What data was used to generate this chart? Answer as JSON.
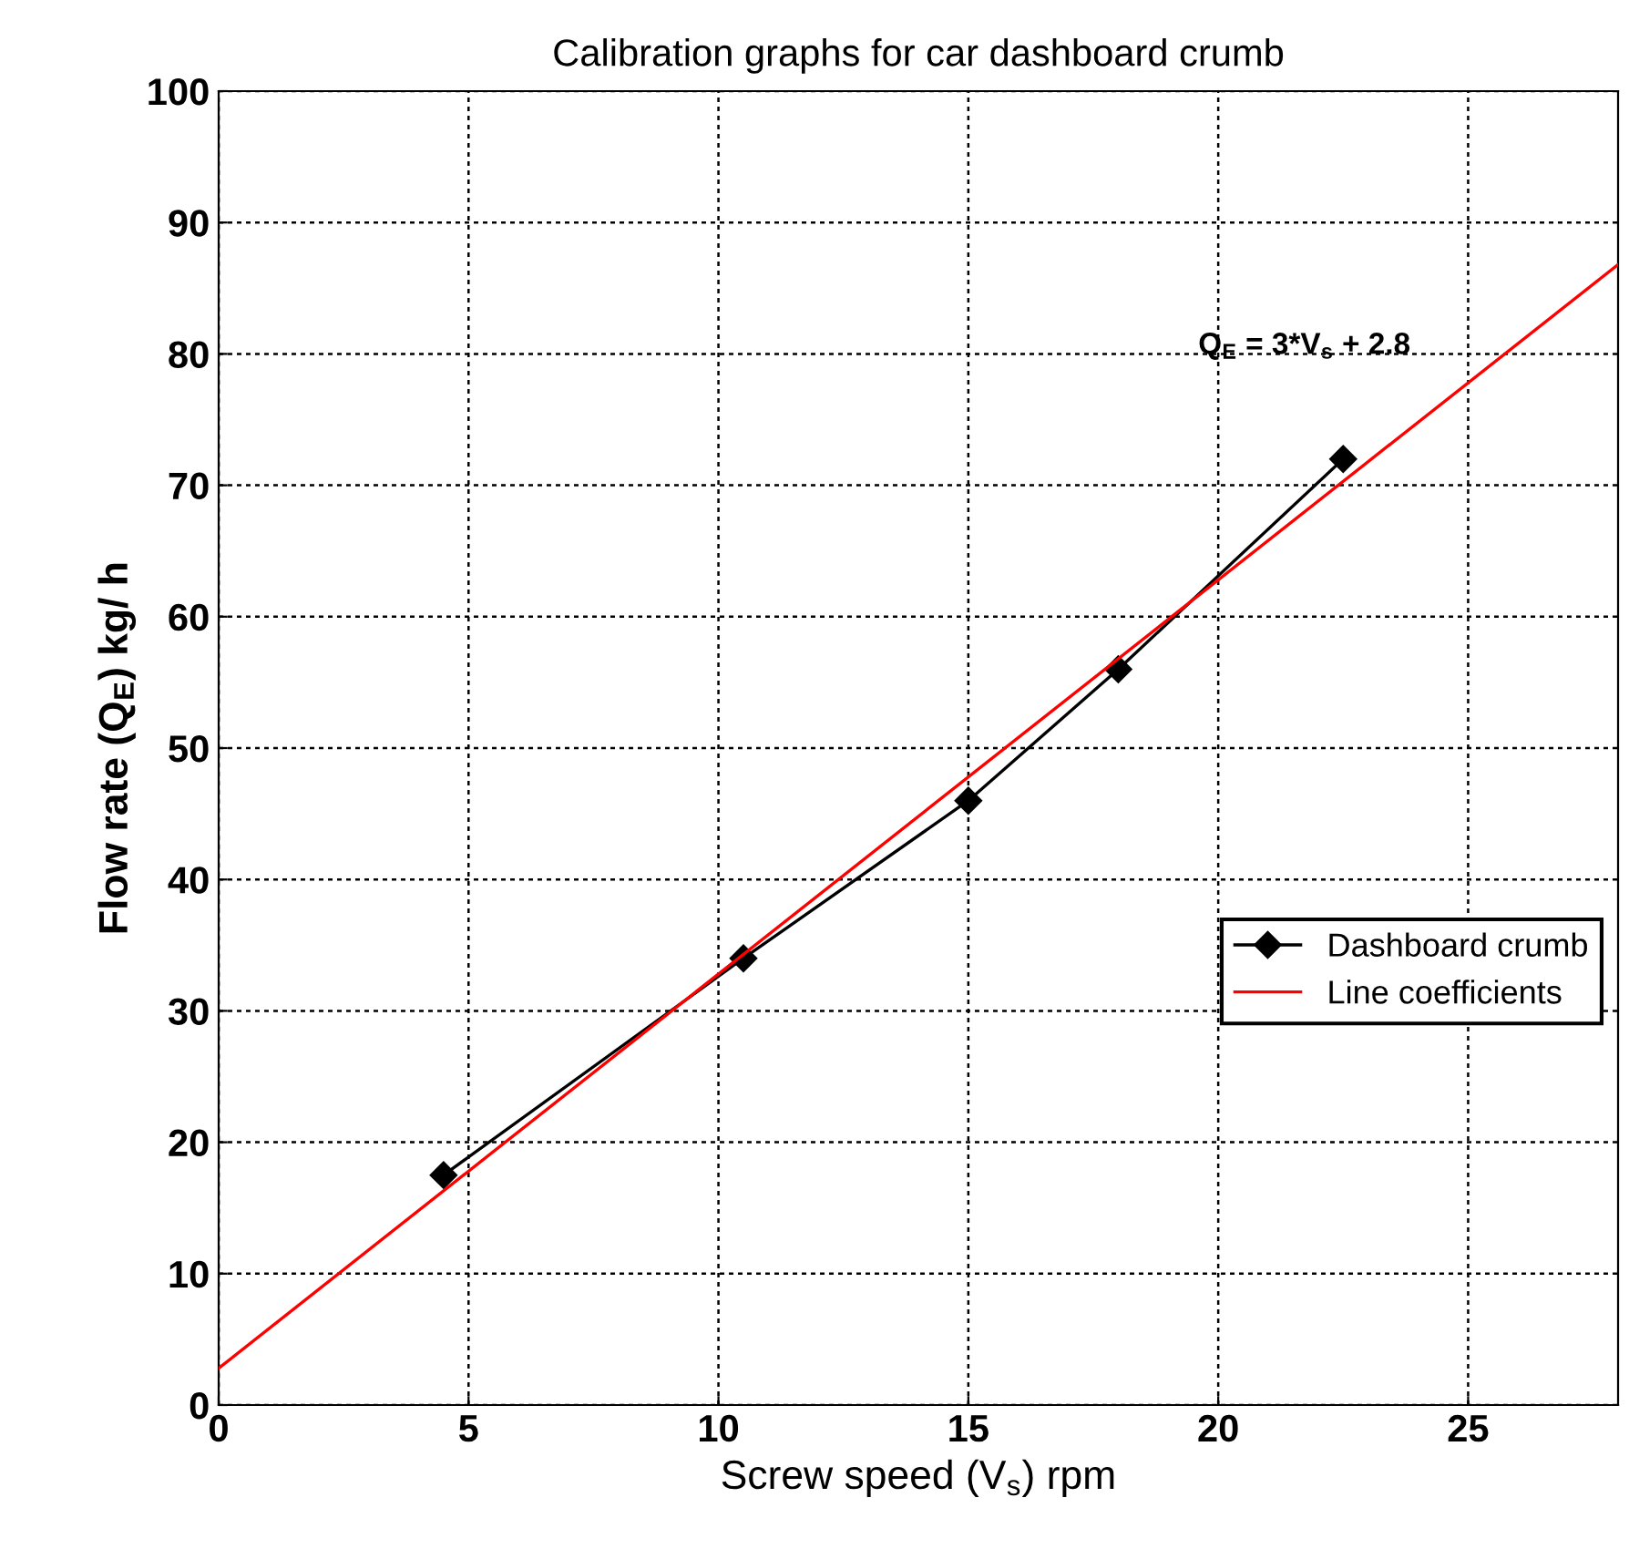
{
  "chart_data": {
    "type": "line",
    "title": "Calibration graphs for car dashboard crumb",
    "xlabel": "Screw speed (V$_{s}$) rpm",
    "ylabel": "Flow rate (Q$_{E}$) kg/ h",
    "series": [
      {
        "name": "Dashboard crumb",
        "color": "#000000",
        "marker": "diamond",
        "x": [
          4.5,
          10.5,
          15,
          18,
          22.5
        ],
        "values": [
          17.5,
          34,
          46,
          56,
          72
        ]
      },
      {
        "name": "Line coefficients",
        "color": "#ff0000",
        "marker": "none",
        "x": [
          0,
          28
        ],
        "values": [
          2.8,
          86.8
        ]
      }
    ],
    "annotations": [
      "Q$_{E}$ = 3*V$_{s}$ + 2.8"
    ],
    "xlim": [
      0,
      28
    ],
    "ylim": [
      0,
      100
    ],
    "xticks": [
      0,
      5,
      10,
      15,
      20,
      25
    ],
    "yticks": [
      0,
      10,
      20,
      30,
      40,
      50,
      60,
      70,
      80,
      90,
      100
    ],
    "grid": true,
    "legend": "right",
    "line_style": "solid"
  }
}
